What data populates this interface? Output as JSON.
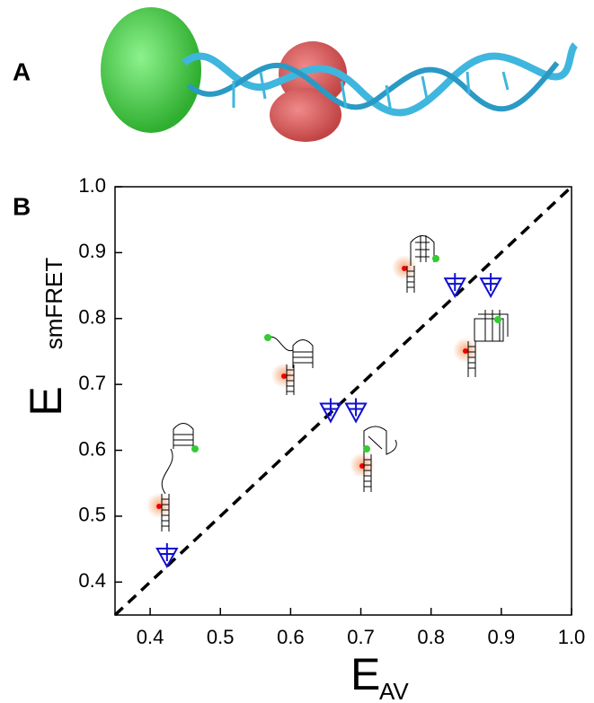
{
  "panel_labels": [
    "A",
    "B"
  ],
  "chart_data": {
    "type": "scatter",
    "x_label": "E",
    "x_label_sub": "AV",
    "y_label": "E",
    "y_label_sub": "smFRET",
    "xlim": [
      0.35,
      1.0
    ],
    "ylim": [
      0.35,
      1.0
    ],
    "xticks": [
      0.4,
      0.5,
      0.6,
      0.7,
      0.8,
      0.9,
      {
        "value": 1,
        "label": "1.0"
      }
    ],
    "yticks": [
      0.4,
      0.5,
      0.6,
      0.7,
      0.8,
      0.9,
      {
        "value": 1,
        "label": "1.0"
      }
    ],
    "diagonal": true,
    "series": [
      {
        "color": "#1010d0",
        "marker": "triangle-down",
        "x": [
          0.424,
          0.657,
          0.693,
          0.834,
          0.885
        ],
        "values": [
          0.44,
          0.66,
          0.66,
          0.85,
          0.85
        ]
      }
    ]
  }
}
